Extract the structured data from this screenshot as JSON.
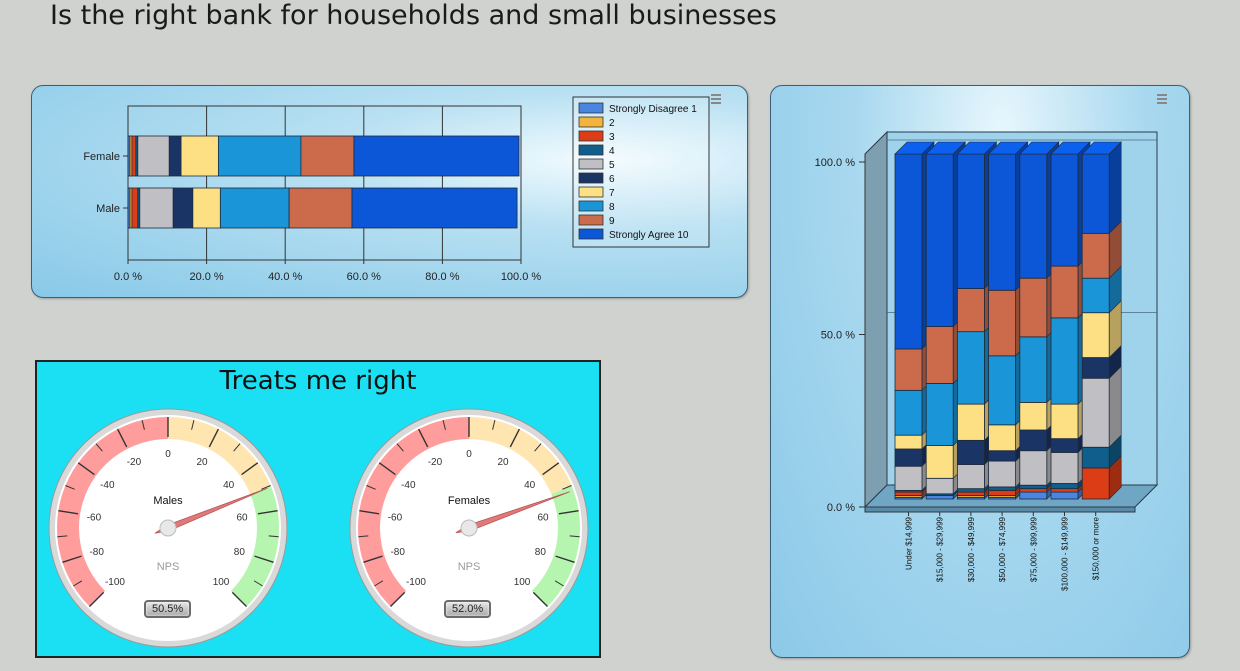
{
  "page": {
    "title": "Is the right bank for households and small businesses"
  },
  "legend": {
    "items": [
      {
        "label": "Strongly Disagree 1",
        "color": "#4a86e0"
      },
      {
        "label": "2",
        "color": "#f3b43d"
      },
      {
        "label": "3",
        "color": "#dc3d16"
      },
      {
        "label": "4",
        "color": "#0f5e8c"
      },
      {
        "label": "5",
        "color": "#bfbfc4"
      },
      {
        "label": "6",
        "color": "#1a3565"
      },
      {
        "label": "7",
        "color": "#fde083"
      },
      {
        "label": "8",
        "color": "#1a95d8"
      },
      {
        "label": "9",
        "color": "#cc6b4c"
      },
      {
        "label": "Strongly Agree 10",
        "color": "#0b57d8"
      }
    ]
  },
  "gauge_panel": {
    "title": "Treats me right",
    "gauges": [
      {
        "label": "Males",
        "unit": "NPS",
        "readout": "50.5%",
        "value": 50.5
      },
      {
        "label": "Females",
        "unit": "NPS",
        "readout": "52.0%",
        "value": 52.0
      }
    ],
    "ticks": [
      "-100",
      "-80",
      "-60",
      "-40",
      "-20",
      "0",
      "20",
      "40",
      "60",
      "80",
      "100"
    ],
    "colors": {
      "negative": "#ff9d9d",
      "neutral": "#ffe6b0",
      "positive": "#b6f5b0"
    }
  },
  "chart_data": [
    {
      "type": "bar",
      "orientation": "horizontal",
      "stacked": true,
      "categories": [
        "Female",
        "Male"
      ],
      "xlim": [
        0,
        100
      ],
      "x_ticks": [
        "0.0 %",
        "20.0 %",
        "40.0 %",
        "60.0 %",
        "80.0 %",
        "100.0 %"
      ],
      "series": [
        {
          "name": "Strongly Disagree 1",
          "values": [
            0.5,
            0.5
          ]
        },
        {
          "name": "2",
          "values": [
            0.5,
            0.5
          ]
        },
        {
          "name": "3",
          "values": [
            1.0,
            1.5
          ]
        },
        {
          "name": "4",
          "values": [
            0.5,
            0.5
          ]
        },
        {
          "name": "5",
          "values": [
            8,
            8.5
          ]
        },
        {
          "name": "6",
          "values": [
            3,
            5
          ]
        },
        {
          "name": "7",
          "values": [
            9.5,
            7
          ]
        },
        {
          "name": "8",
          "values": [
            21,
            17.5
          ]
        },
        {
          "name": "9",
          "values": [
            13.5,
            16
          ]
        },
        {
          "name": "Strongly Agree 10",
          "values": [
            42,
            42
          ]
        }
      ]
    },
    {
      "type": "bar",
      "orientation": "vertical",
      "stacked": true,
      "three_d": true,
      "categories": [
        "Under $14,999",
        "$15,000 - $29,999",
        "$30,000 - $49,999",
        "$50,000 - $74,999",
        "$75,000 - $99,999",
        "$100,000 - $149,999",
        "$150,000 or more"
      ],
      "ylim": [
        0,
        100
      ],
      "y_ticks": [
        "0.0 %",
        "50.0 %",
        "100.0 %"
      ],
      "series": [
        {
          "name": "Strongly Disagree 1",
          "values": [
            0.5,
            1,
            0.5,
            0.5,
            2,
            2,
            0
          ]
        },
        {
          "name": "2",
          "values": [
            0.5,
            0,
            0.5,
            0.5,
            0,
            0,
            0
          ]
        },
        {
          "name": "3",
          "values": [
            1,
            0,
            1,
            1.5,
            1,
            1,
            9
          ]
        },
        {
          "name": "4",
          "values": [
            0.5,
            0.5,
            1,
            1,
            1,
            1.5,
            6
          ]
        },
        {
          "name": "5",
          "values": [
            7,
            4.5,
            7,
            7.5,
            10,
            9,
            20
          ]
        },
        {
          "name": "6",
          "values": [
            5,
            0,
            7,
            3,
            6,
            4,
            6
          ]
        },
        {
          "name": "7",
          "values": [
            4,
            9.5,
            10.5,
            7.5,
            8,
            10,
            13
          ]
        },
        {
          "name": "8",
          "values": [
            13,
            18,
            21,
            20,
            19,
            25,
            10
          ]
        },
        {
          "name": "9",
          "values": [
            12,
            16.5,
            12.5,
            19,
            17,
            15,
            13
          ]
        },
        {
          "name": "Strongly Agree 10",
          "values": [
            56.5,
            50,
            39,
            39.5,
            36,
            32.5,
            23
          ]
        }
      ]
    }
  ]
}
